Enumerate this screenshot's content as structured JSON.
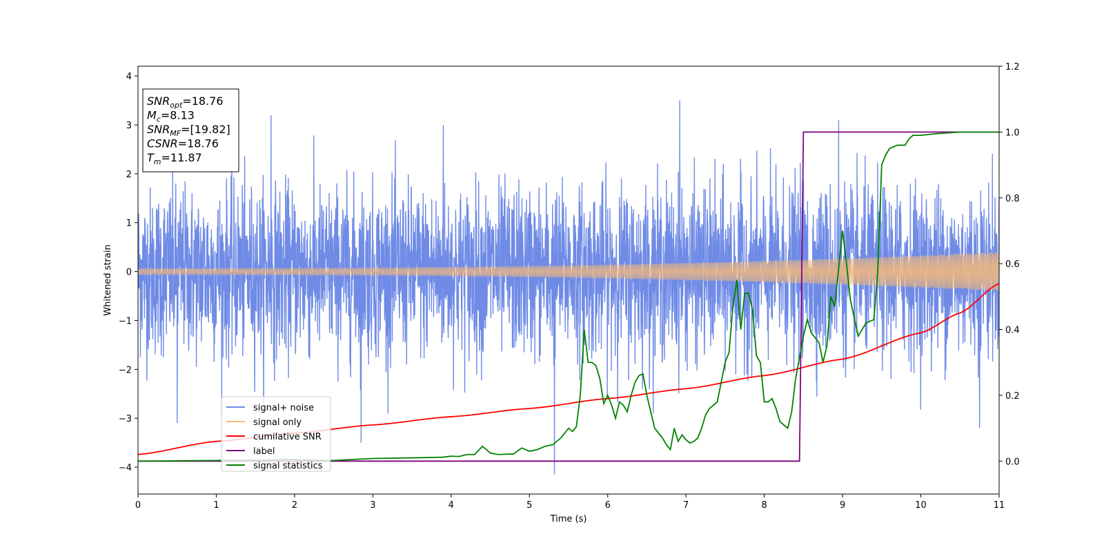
{
  "chart_data": {
    "type": "line",
    "xlabel": "Time (s)",
    "ylabel": "Whitened strain",
    "xlim": [
      0,
      11
    ],
    "ylim": [
      -4.55,
      4.2
    ],
    "y2lim": [
      -0.1,
      1.2
    ],
    "x_ticks": [
      0,
      1,
      2,
      3,
      4,
      5,
      6,
      7,
      8,
      9,
      10,
      11
    ],
    "x_tick_labels": [
      "0",
      "1",
      "2",
      "3",
      "4",
      "5",
      "6",
      "7",
      "8",
      "9",
      "10",
      "11"
    ],
    "y_ticks": [
      4,
      3,
      2,
      1,
      0,
      -1,
      -2,
      -3,
      -4
    ],
    "y_tick_labels": [
      "4",
      "3",
      "2",
      "1",
      "0",
      "−1",
      "−2",
      "−3",
      "−4"
    ],
    "y2_ticks": [
      1.2,
      1.0,
      0.8,
      0.6,
      0.4,
      0.2,
      0.0
    ],
    "y2_tick_labels": [
      "1.2",
      "1.0",
      "0.8",
      "0.6",
      "0.4",
      "0.2",
      "0.0"
    ],
    "legend_position": "lower-left",
    "series": [
      {
        "name": "signal+ noise",
        "axis": "left",
        "color": "#6f8be6",
        "kind": "noise",
        "std": 0.85,
        "spike_peaks": [
          {
            "x": 0.5,
            "y": -3.1
          },
          {
            "x": 1.7,
            "y": 3.2
          },
          {
            "x": 2.85,
            "y": -3.5
          },
          {
            "x": 3.9,
            "y": 3.0
          },
          {
            "x": 5.32,
            "y": -4.15
          },
          {
            "x": 6.92,
            "y": 3.5
          },
          {
            "x": 8.95,
            "y": 3.1
          },
          {
            "x": 10.75,
            "y": -3.2
          }
        ]
      },
      {
        "name": "signal only",
        "axis": "left",
        "color": "#f5b97a",
        "kind": "chirp",
        "amplitude_start": 0.06,
        "amplitude_end": 0.4
      },
      {
        "name": "cumilative SNR",
        "axis": "right",
        "color": "#ff0000",
        "x": [
          0,
          1,
          2,
          3,
          4,
          5,
          6,
          7,
          8,
          9,
          10,
          10.5,
          11
        ],
        "y": [
          0.02,
          0.06,
          0.085,
          0.11,
          0.135,
          0.16,
          0.19,
          0.22,
          0.26,
          0.31,
          0.39,
          0.45,
          0.54
        ]
      },
      {
        "name": "label",
        "axis": "right",
        "color": "#800080",
        "x": [
          0,
          8.45,
          8.5,
          11
        ],
        "y": [
          0.0,
          0.0,
          1.0,
          1.0
        ]
      },
      {
        "name": "signal statistics",
        "axis": "right",
        "color": "#008000",
        "x": [
          0,
          1.0,
          2.0,
          2.5,
          3.0,
          3.5,
          3.9,
          4.0,
          4.1,
          4.2,
          4.3,
          4.4,
          4.5,
          4.6,
          4.8,
          4.9,
          5.0,
          5.1,
          5.2,
          5.3,
          5.4,
          5.45,
          5.5,
          5.55,
          5.6,
          5.65,
          5.7,
          5.75,
          5.8,
          5.85,
          5.9,
          5.95,
          6.0,
          6.05,
          6.1,
          6.15,
          6.2,
          6.25,
          6.3,
          6.35,
          6.4,
          6.45,
          6.5,
          6.55,
          6.6,
          6.7,
          6.75,
          6.8,
          6.85,
          6.9,
          6.95,
          7.0,
          7.05,
          7.1,
          7.15,
          7.2,
          7.25,
          7.3,
          7.4,
          7.5,
          7.55,
          7.6,
          7.65,
          7.7,
          7.75,
          7.8,
          7.85,
          7.9,
          7.95,
          8.0,
          8.05,
          8.1,
          8.15,
          8.2,
          8.3,
          8.35,
          8.4,
          8.5,
          8.55,
          8.6,
          8.7,
          8.75,
          8.8,
          8.85,
          8.9,
          9.0,
          9.05,
          9.1,
          9.2,
          9.25,
          9.3,
          9.4,
          9.45,
          9.5,
          9.55,
          9.6,
          9.7,
          9.8,
          9.85,
          9.9,
          10.0,
          10.2,
          10.5,
          11.0
        ],
        "y": [
          0.0,
          0.002,
          0.005,
          0.002,
          0.008,
          0.01,
          0.012,
          0.015,
          0.014,
          0.02,
          0.02,
          0.045,
          0.025,
          0.02,
          0.022,
          0.04,
          0.03,
          0.035,
          0.045,
          0.05,
          0.07,
          0.085,
          0.1,
          0.09,
          0.105,
          0.2,
          0.4,
          0.3,
          0.3,
          0.29,
          0.25,
          0.175,
          0.2,
          0.17,
          0.13,
          0.18,
          0.17,
          0.15,
          0.2,
          0.24,
          0.26,
          0.265,
          0.2,
          0.15,
          0.1,
          0.07,
          0.05,
          0.035,
          0.1,
          0.06,
          0.08,
          0.065,
          0.055,
          0.06,
          0.07,
          0.1,
          0.14,
          0.16,
          0.18,
          0.3,
          0.33,
          0.47,
          0.55,
          0.4,
          0.51,
          0.51,
          0.46,
          0.32,
          0.3,
          0.18,
          0.18,
          0.19,
          0.16,
          0.12,
          0.1,
          0.15,
          0.25,
          0.38,
          0.43,
          0.39,
          0.36,
          0.3,
          0.35,
          0.5,
          0.47,
          0.7,
          0.6,
          0.49,
          0.38,
          0.4,
          0.42,
          0.43,
          0.58,
          0.9,
          0.93,
          0.95,
          0.96,
          0.96,
          0.98,
          0.99,
          0.99,
          0.995,
          1.0,
          1.0
        ]
      }
    ]
  },
  "info_box": {
    "lines": [
      {
        "main": "SNR",
        "sub": "opt",
        "rest": "=18.76"
      },
      {
        "main": "M",
        "sub": "c",
        "rest": "=8.13"
      },
      {
        "main": "SNR",
        "sub": "MF",
        "rest": "=[19.82]"
      },
      {
        "main": "CSNR",
        "sub": "",
        "rest": "=18.76"
      },
      {
        "main": "T",
        "sub": "m",
        "rest": "=11.87"
      }
    ]
  }
}
